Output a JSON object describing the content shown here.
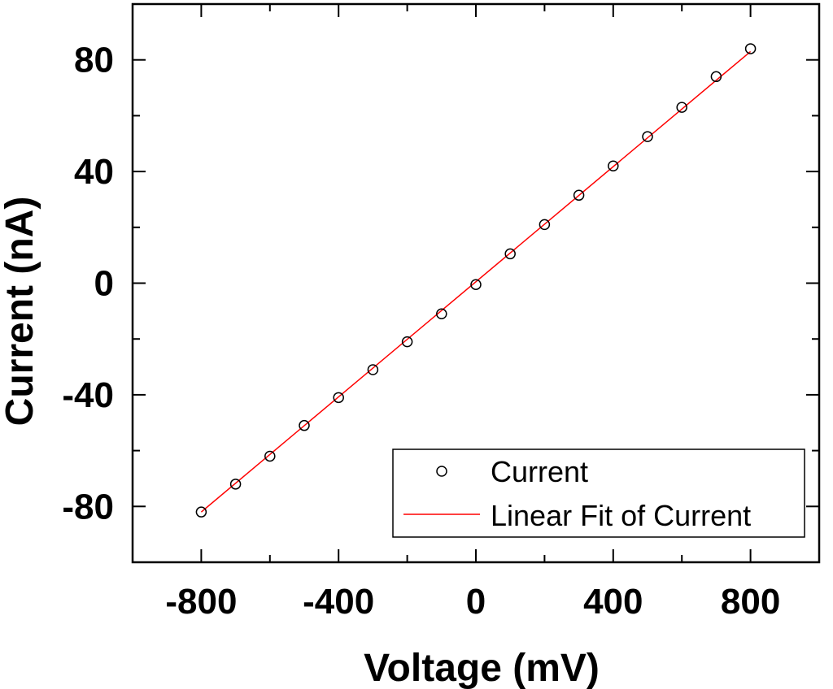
{
  "chart_data": {
    "type": "scatter",
    "xlabel": "Voltage (mV)",
    "ylabel": "Current (nA)",
    "xlim": [
      -1000,
      1000
    ],
    "ylim": [
      -100,
      100
    ],
    "x_ticks": [
      -800,
      -400,
      0,
      400,
      800
    ],
    "y_ticks": [
      -80,
      -40,
      0,
      40,
      80
    ],
    "x_tick_labels": [
      "-800",
      "-400",
      "0",
      "400",
      "800"
    ],
    "y_tick_labels": [
      "-80",
      "-40",
      "0",
      "40",
      "80"
    ],
    "grid": false,
    "legend_position": "bottom-right",
    "series": [
      {
        "name": "Current",
        "kind": "scatter",
        "marker": "open-circle",
        "color": "#000000",
        "x": [
          -800,
          -700,
          -600,
          -500,
          -400,
          -300,
          -200,
          -100,
          0,
          100,
          200,
          300,
          400,
          500,
          600,
          700,
          800
        ],
        "y": [
          -82,
          -72,
          -62,
          -51,
          -41,
          -31,
          -21,
          -11,
          -0.5,
          10.5,
          21,
          31.5,
          42,
          52.5,
          63,
          74,
          84
        ]
      },
      {
        "name": "Linear Fit of Current",
        "kind": "line",
        "color": "#ff0000",
        "x": [
          -800,
          800
        ],
        "y": [
          -82,
          83
        ]
      }
    ]
  }
}
